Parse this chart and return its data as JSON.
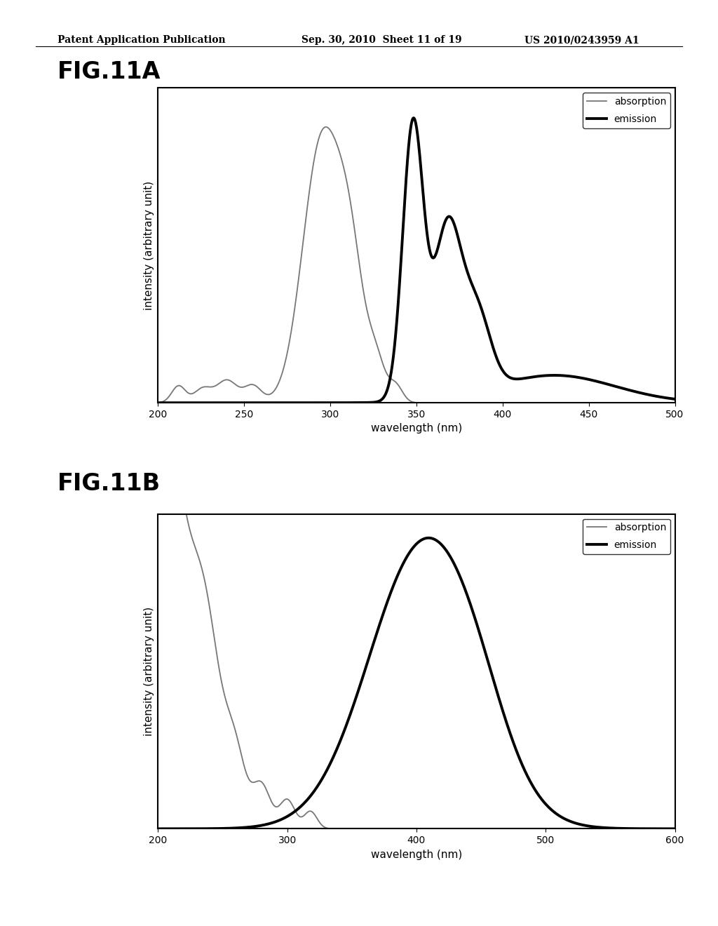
{
  "fig11a": {
    "title": "FIG.11A",
    "xlabel": "wavelength (nm)",
    "ylabel": "intensity (arbitrary unit)",
    "xlim": [
      200,
      500
    ],
    "xticks": [
      200,
      250,
      300,
      350,
      400,
      450,
      500
    ],
    "absorption_color": "#777777",
    "emission_color": "#000000",
    "absorption_lw": 1.3,
    "emission_lw": 2.8
  },
  "fig11b": {
    "title": "FIG.11B",
    "xlabel": "wavelength (nm)",
    "ylabel": "intensity (arbitrary unit)",
    "xlim": [
      200,
      600
    ],
    "xticks": [
      200,
      300,
      400,
      500,
      600
    ],
    "absorption_color": "#777777",
    "emission_color": "#000000",
    "absorption_lw": 1.3,
    "emission_lw": 2.8
  },
  "header_left": "Patent Application Publication",
  "header_mid": "Sep. 30, 2010  Sheet 11 of 19",
  "header_right": "US 2010/0243959 A1",
  "background": "#ffffff",
  "fig_label_fontsize": 24,
  "axis_label_fontsize": 11,
  "tick_fontsize": 10,
  "legend_fontsize": 10
}
